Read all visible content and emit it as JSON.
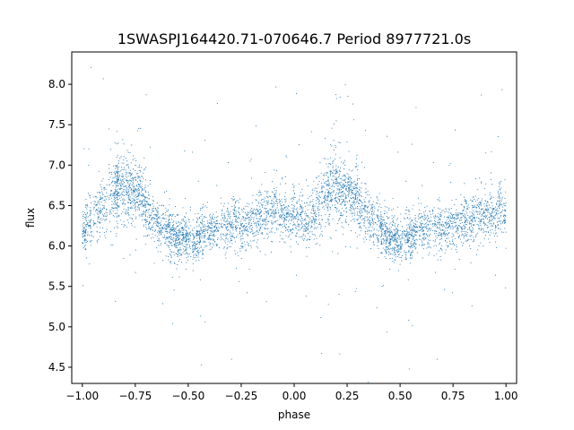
{
  "chart_data": {
    "type": "scatter",
    "title": "1SWASPJ164420.71-070646.7 Period 8977721.0s",
    "xlabel": "phase",
    "ylabel": "flux",
    "xlim": [
      -1.05,
      1.05
    ],
    "ylim": [
      4.3,
      8.4
    ],
    "xticks": [
      {
        "value": -1.0,
        "label": "−1.00"
      },
      {
        "value": -0.75,
        "label": "−0.75"
      },
      {
        "value": -0.5,
        "label": "−0.50"
      },
      {
        "value": -0.25,
        "label": "−0.25"
      },
      {
        "value": 0.0,
        "label": "0.00"
      },
      {
        "value": 0.25,
        "label": "0.25"
      },
      {
        "value": 0.5,
        "label": "0.50"
      },
      {
        "value": 0.75,
        "label": "0.75"
      },
      {
        "value": 1.0,
        "label": "1.00"
      }
    ],
    "yticks": [
      {
        "value": 4.5,
        "label": "4.5"
      },
      {
        "value": 5.0,
        "label": "5.0"
      },
      {
        "value": 5.5,
        "label": "5.5"
      },
      {
        "value": 6.0,
        "label": "6.0"
      },
      {
        "value": 6.5,
        "label": "6.5"
      },
      {
        "value": 7.0,
        "label": "7.0"
      },
      {
        "value": 7.5,
        "label": "7.5"
      },
      {
        "value": 8.0,
        "label": "8.0"
      }
    ],
    "grid": false,
    "series": [
      {
        "color": "#1f77b4",
        "x": [
          -0.99,
          -0.97,
          -0.93,
          -0.9,
          -0.86,
          -0.84,
          -0.83,
          -0.81,
          -0.79,
          -0.77,
          -0.75,
          -0.73,
          -0.71,
          -0.69,
          -0.66,
          -0.63,
          -0.6,
          -0.58,
          -0.56,
          -0.54,
          -0.52,
          -0.5,
          -0.47,
          -0.45,
          -0.43,
          -0.4,
          -0.37,
          -0.33,
          -0.3,
          -0.27,
          -0.24,
          -0.21,
          -0.18,
          -0.15,
          -0.12,
          -0.09,
          -0.06,
          -0.03,
          0.0,
          0.03,
          0.06,
          0.09,
          0.12,
          0.15,
          0.17,
          0.19,
          0.21,
          0.23,
          0.25,
          0.27,
          0.29,
          0.31,
          0.34,
          0.37,
          0.4,
          0.42,
          0.44,
          0.46,
          0.48,
          0.5,
          0.53,
          0.55,
          0.57,
          0.6,
          0.63,
          0.67,
          0.7,
          0.73,
          0.76,
          0.79,
          0.82,
          0.85,
          0.88,
          0.91,
          0.94,
          0.97,
          1.0
        ],
        "y": [
          6.2,
          6.3,
          6.4,
          6.5,
          6.6,
          6.7,
          6.75,
          6.7,
          6.65,
          6.7,
          6.6,
          6.7,
          6.55,
          6.4,
          6.3,
          6.25,
          6.2,
          6.15,
          6.1,
          6.05,
          6.1,
          6.1,
          6.05,
          6.1,
          6.15,
          6.2,
          6.2,
          6.2,
          6.25,
          6.3,
          6.25,
          6.3,
          6.35,
          6.4,
          6.4,
          6.45,
          6.4,
          6.35,
          6.4,
          6.35,
          6.3,
          6.4,
          6.5,
          6.65,
          6.7,
          6.75,
          6.7,
          6.65,
          6.7,
          6.6,
          6.65,
          6.5,
          6.4,
          6.3,
          6.25,
          6.2,
          6.15,
          6.1,
          6.1,
          6.05,
          6.1,
          6.1,
          6.15,
          6.2,
          6.2,
          6.25,
          6.2,
          6.25,
          6.3,
          6.3,
          6.3,
          6.35,
          6.35,
          6.4,
          6.4,
          6.45,
          6.4
        ],
        "spread": [
          0.28,
          0.25,
          0.25,
          0.3,
          0.32,
          0.35,
          0.38,
          0.4,
          0.38,
          0.36,
          0.35,
          0.35,
          0.32,
          0.3,
          0.28,
          0.27,
          0.26,
          0.26,
          0.26,
          0.25,
          0.25,
          0.25,
          0.25,
          0.25,
          0.24,
          0.24,
          0.24,
          0.24,
          0.25,
          0.26,
          0.26,
          0.27,
          0.27,
          0.28,
          0.28,
          0.28,
          0.28,
          0.28,
          0.28,
          0.28,
          0.28,
          0.3,
          0.32,
          0.35,
          0.38,
          0.4,
          0.38,
          0.36,
          0.35,
          0.35,
          0.35,
          0.32,
          0.3,
          0.28,
          0.27,
          0.26,
          0.26,
          0.26,
          0.25,
          0.25,
          0.25,
          0.25,
          0.25,
          0.24,
          0.24,
          0.24,
          0.24,
          0.25,
          0.26,
          0.26,
          0.27,
          0.27,
          0.28,
          0.28,
          0.28,
          0.28,
          0.28
        ]
      }
    ]
  }
}
